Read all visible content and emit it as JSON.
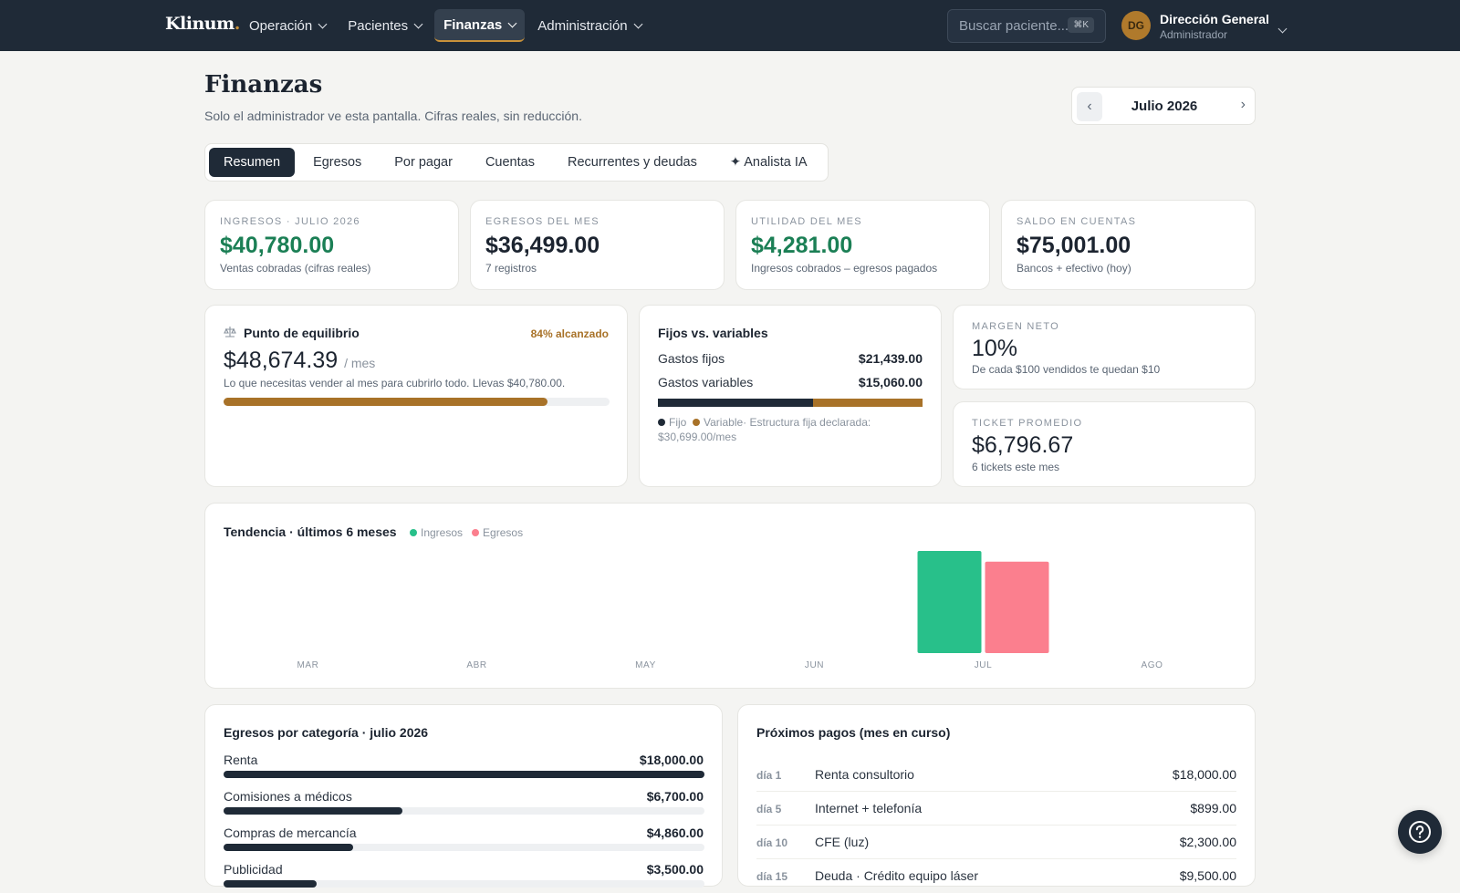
{
  "app": {
    "logo": "Klinum",
    "logo_dot": ".",
    "nav": [
      {
        "label": "Operación"
      },
      {
        "label": "Pacientes"
      },
      {
        "label": "Finanzas"
      },
      {
        "label": "Administración"
      }
    ],
    "search_placeholder": "Buscar paciente...",
    "search_shortcut": "⌘K",
    "user": {
      "initials": "DG",
      "name": "Dirección General",
      "role": "Administrador"
    }
  },
  "header": {
    "title": "Finanzas",
    "subtitle": "Solo el administrador ve esta pantalla. Cifras reales, sin reducción.",
    "month_label": "Julio 2026",
    "prev": "‹",
    "next": "›"
  },
  "tabs": [
    {
      "label": "Resumen"
    },
    {
      "label": "Egresos"
    },
    {
      "label": "Por pagar"
    },
    {
      "label": "Cuentas"
    },
    {
      "label": "Recurrentes y deudas"
    },
    {
      "label": "✦ Analista IA"
    }
  ],
  "kpis": [
    {
      "label": "INGRESOS · JULIO 2026",
      "value": "$40,780.00",
      "sub": "Ventas cobradas (cifras reales)"
    },
    {
      "label": "EGRESOS DEL MES",
      "value": "$36,499.00",
      "sub": "7 registros"
    },
    {
      "label": "UTILIDAD DEL MES",
      "value": "$4,281.00",
      "sub": "Ingresos cobrados – egresos pagados"
    },
    {
      "label": "SALDO EN CUENTAS",
      "value": "$75,001.00",
      "sub": "Bancos + efectivo (hoy)"
    }
  ],
  "breakeven": {
    "title": "Punto de equilibrio",
    "badge": "84% alcanzado",
    "value": "$48,674.39",
    "unit": "/ mes",
    "note": "Lo que necesitas vender al mes para cubrirlo todo. Llevas $40,780.00.",
    "progress": 0.84
  },
  "fixed_var": {
    "title": "Fijos vs. variables",
    "fixed_label": "Gastos fijos",
    "fixed_value": "$21,439.00",
    "var_label": "Gastos variables",
    "var_value": "$15,060.00",
    "fixed_share": 0.587,
    "legend_fixed": "Fijo",
    "legend_var": "Variable",
    "note": "· Estructura fija declarada: $30,699.00/mes"
  },
  "margin": {
    "label": "MARGEN NETO",
    "value": "10%",
    "sub": "De cada $100 vendidos te quedan $10"
  },
  "ticket": {
    "label": "TICKET PROMEDIO",
    "value": "$6,796.67",
    "sub": "6 tickets este mes"
  },
  "colors": {
    "income": "#28c08a",
    "expense": "#fb7f8e",
    "fixed": "#1f2a37",
    "variable": "#a87228"
  },
  "chart_data": {
    "type": "bar",
    "title": "Tendencia · últimos 6 meses",
    "categories": [
      "MAR",
      "ABR",
      "MAY",
      "JUN",
      "JUL",
      "AGO"
    ],
    "series": [
      {
        "name": "Ingresos",
        "values": [
          0,
          0,
          0,
          0,
          40780,
          0
        ]
      },
      {
        "name": "Egresos",
        "values": [
          0,
          0,
          0,
          0,
          36499,
          0
        ]
      }
    ],
    "ylim": [
      0,
      40780
    ],
    "grid": false,
    "legend": "top-left"
  },
  "categories_card": {
    "title": "Egresos por categoría · julio 2026",
    "items": [
      {
        "label": "Renta",
        "value": "$18,000.00",
        "share": 1.0
      },
      {
        "label": "Comisiones a médicos",
        "value": "$6,700.00",
        "share": 0.372
      },
      {
        "label": "Compras de mercancía",
        "value": "$4,860.00",
        "share": 0.27
      },
      {
        "label": "Publicidad",
        "value": "$3,500.00",
        "share": 0.194
      }
    ]
  },
  "payments_card": {
    "title": "Próximos pagos (mes en curso)",
    "items": [
      {
        "day": "día 1",
        "concept": "Renta consultorio",
        "amount": "$18,000.00"
      },
      {
        "day": "día 5",
        "concept": "Internet + telefonía",
        "amount": "$899.00"
      },
      {
        "day": "día 10",
        "concept": "CFE (luz)",
        "amount": "$2,300.00"
      },
      {
        "day": "día 15",
        "concept": "Deuda · Crédito equipo láser",
        "amount": "$9,500.00"
      }
    ]
  }
}
